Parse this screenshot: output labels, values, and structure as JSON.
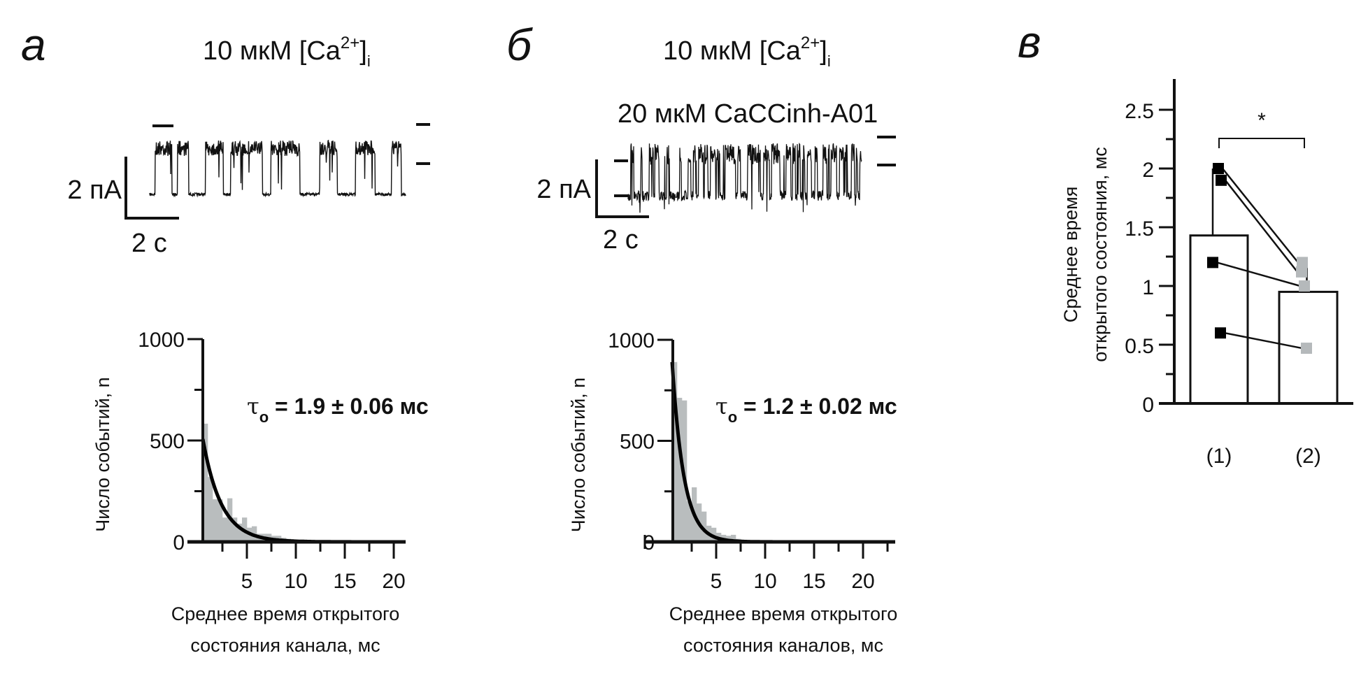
{
  "panels": {
    "a": {
      "letter": "а",
      "title": {
        "main": "10 мкМ [Ca",
        "sup": "2+",
        "close": "]",
        "sub": "i"
      },
      "scalebar": {
        "current": "2 пА",
        "time": "2 с"
      }
    },
    "b": {
      "letter": "б",
      "title": {
        "main": "10 мкМ [Ca",
        "sup": "2+",
        "close": "]",
        "sub": "i"
      },
      "drug": "20 мкМ CaCCinh-A01",
      "scalebar": {
        "current": "2 пА",
        "time": "2 с"
      }
    },
    "c": {
      "letter": "в"
    }
  },
  "traces": {
    "a": {
      "duration_s": 9.62,
      "closed_intervals_s": [
        [
          0,
          0.21
        ],
        [
          0.84,
          1.05
        ],
        [
          1.47,
          2.1
        ],
        [
          2.77,
          3.04
        ],
        [
          4.24,
          4.55
        ],
        [
          5.65,
          6.38
        ],
        [
          7.05,
          7.73
        ],
        [
          8.47,
          9.09
        ],
        [
          9.46,
          9.62
        ]
      ],
      "amplitude_pA": 3.5
    },
    "b": {
      "duration_s": 8.8,
      "mode": "flicker",
      "amplitude_pA": 2.6
    }
  },
  "chart_data": [
    {
      "type": "bar",
      "id": "hist-a",
      "title": "",
      "xlabel": [
        "Среднее время открытого",
        "состояния канала, мс"
      ],
      "ylabel": "Число событий, n",
      "xlim": [
        0,
        21
      ],
      "ylim": [
        0,
        1000
      ],
      "xticks": [
        "5",
        "10",
        "15",
        "20"
      ],
      "xtick_values": [
        5,
        10,
        15,
        20
      ],
      "yticks": [
        "0",
        "500",
        "1000"
      ],
      "ytick_values": [
        0,
        500,
        1000
      ],
      "bin_start": 0.5,
      "bin_width": 0.5,
      "values": [
        583,
        320,
        210,
        210,
        120,
        215,
        120,
        90,
        120,
        70,
        77,
        40,
        40,
        40,
        30,
        30,
        20,
        15,
        10,
        5,
        3,
        2
      ],
      "fit": {
        "type": "exponential",
        "amplitude": 660,
        "tau_ms": 1.9
      },
      "annotation": {
        "symbol": "τ",
        "sub": "o",
        "text": " = 1.9 ± 0.06 мс"
      },
      "bar_color": "#b9bdbe",
      "fit_color": "#000000"
    },
    {
      "type": "bar",
      "id": "hist-b",
      "title": "",
      "xlabel": [
        "Среднее время открытого",
        "состояния каналов, мс"
      ],
      "ylabel": "Число событий, n",
      "xlim": [
        0,
        23.5
      ],
      "ylim": [
        0,
        1000
      ],
      "xticks": [
        "5",
        "10",
        "15",
        "20"
      ],
      "xtick_values": [
        5,
        10,
        15,
        20
      ],
      "yticks": [
        "0",
        "500",
        "1000"
      ],
      "ytick_values": [
        0,
        500,
        1000
      ],
      "bin_start": 0.5,
      "bin_width": 0.5,
      "values": [
        890,
        713,
        700,
        200,
        270,
        190,
        150,
        80,
        70,
        45,
        35,
        30,
        35,
        15,
        10,
        5,
        3
      ],
      "fit": {
        "type": "exponential",
        "amplitude": 1350,
        "tau_ms": 1.2
      },
      "annotation": {
        "symbol": "τ",
        "sub": "o",
        "text": " = 1.2 ± 0.02 мс"
      },
      "bar_color": "#b9bdbe",
      "fit_color": "#000000"
    },
    {
      "type": "bar",
      "id": "bar-c",
      "ylabel": [
        "Среднее время",
        "открытого состояния, мс"
      ],
      "categories": [
        "(1)",
        "(2)"
      ],
      "values": [
        1.43,
        0.95
      ],
      "error_upper": [
        2.0,
        1.22
      ],
      "ylim": [
        0,
        2.75
      ],
      "yticks": [
        "0",
        "0.5",
        "1",
        "1.5",
        "2",
        "2.5"
      ],
      "ytick_values": [
        0,
        0.5,
        1,
        1.5,
        2,
        2.5
      ],
      "paired_points": [
        [
          2.0,
          1.2
        ],
        [
          1.9,
          1.12
        ],
        [
          1.2,
          1.0
        ],
        [
          0.6,
          0.47
        ]
      ],
      "point_colors": [
        "#000000",
        "#b5b9bb"
      ],
      "significance": {
        "label": "*",
        "between": [
          "(1)",
          "(2)"
        ]
      }
    }
  ]
}
